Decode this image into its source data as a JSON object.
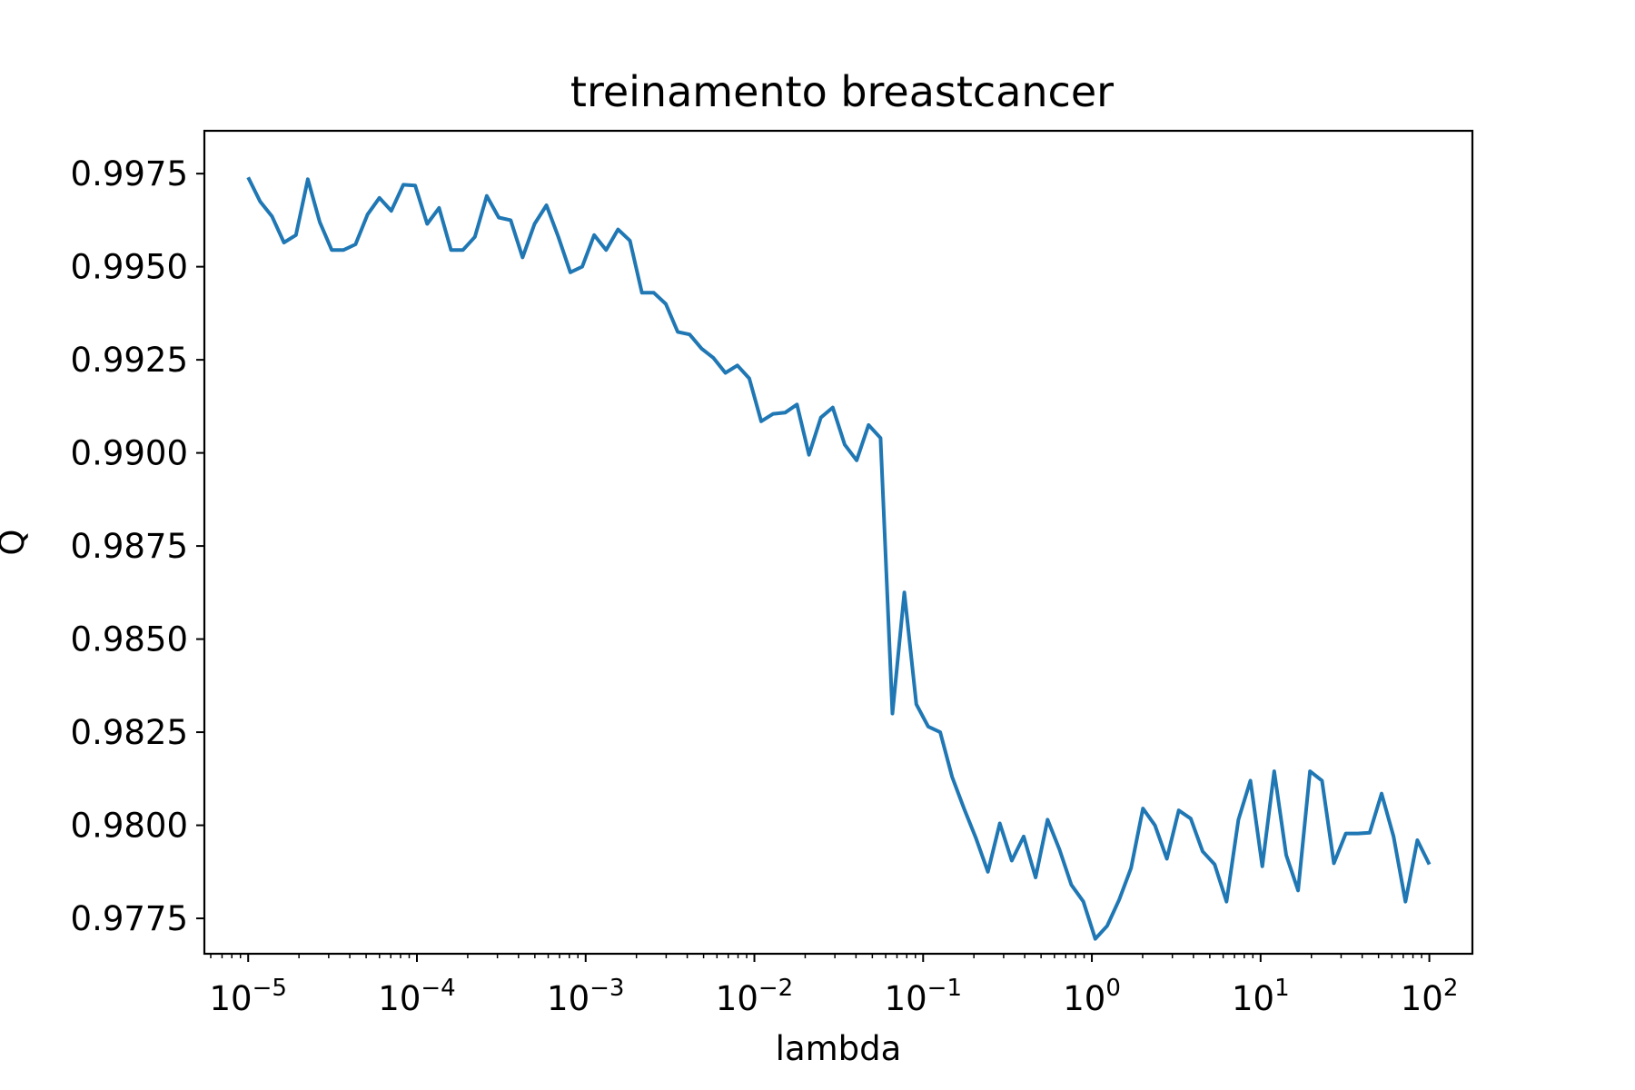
{
  "chart_data": {
    "type": "line",
    "title": "treinamento breastcancer",
    "xlabel": "lambda",
    "ylabel": "Q",
    "xscale": "log",
    "xlim": [
      5.5e-06,
      180
    ],
    "ylim": [
      0.97655,
      0.99865
    ],
    "grid": false,
    "legend": "none",
    "x_ticks": [
      {
        "value": 1e-05,
        "base": "10",
        "exp": "−5"
      },
      {
        "value": 0.0001,
        "base": "10",
        "exp": "−4"
      },
      {
        "value": 0.001,
        "base": "10",
        "exp": "−3"
      },
      {
        "value": 0.01,
        "base": "10",
        "exp": "−2"
      },
      {
        "value": 0.1,
        "base": "10",
        "exp": "−1"
      },
      {
        "value": 1,
        "base": "10",
        "exp": "0"
      },
      {
        "value": 10,
        "base": "10",
        "exp": "1"
      },
      {
        "value": 100,
        "base": "10",
        "exp": "2"
      }
    ],
    "y_ticks": [
      {
        "value": 0.9775,
        "label": "0.9775"
      },
      {
        "value": 0.98,
        "label": "0.9800"
      },
      {
        "value": 0.9825,
        "label": "0.9825"
      },
      {
        "value": 0.985,
        "label": "0.9850"
      },
      {
        "value": 0.9875,
        "label": "0.9875"
      },
      {
        "value": 0.99,
        "label": "0.9900"
      },
      {
        "value": 0.9925,
        "label": "0.9925"
      },
      {
        "value": 0.995,
        "label": "0.9950"
      },
      {
        "value": 0.9975,
        "label": "0.9975"
      }
    ],
    "series": [
      {
        "color": "#1f77b4",
        "log10_x_start": -5,
        "log10_x_end": 2,
        "y": [
          0.9974,
          0.99675,
          0.99635,
          0.99565,
          0.99585,
          0.99735,
          0.9962,
          0.99545,
          0.99545,
          0.9956,
          0.9964,
          0.99685,
          0.9965,
          0.9972,
          0.99718,
          0.99615,
          0.99658,
          0.99545,
          0.99545,
          0.9958,
          0.9969,
          0.99632,
          0.99625,
          0.99525,
          0.99615,
          0.99665,
          0.9958,
          0.99485,
          0.995,
          0.99585,
          0.99545,
          0.996,
          0.9957,
          0.9943,
          0.9943,
          0.994,
          0.99325,
          0.99318,
          0.9928,
          0.99255,
          0.99215,
          0.99235,
          0.992,
          0.99085,
          0.99105,
          0.99108,
          0.9913,
          0.98995,
          0.99095,
          0.99122,
          0.99022,
          0.9898,
          0.99075,
          0.9904,
          0.983,
          0.98625,
          0.98325,
          0.98265,
          0.9825,
          0.9813,
          0.98045,
          0.97965,
          0.97875,
          0.98005,
          0.97905,
          0.9797,
          0.9786,
          0.98015,
          0.97935,
          0.9784,
          0.97795,
          0.97695,
          0.9773,
          0.978,
          0.97885,
          0.98045,
          0.98,
          0.9791,
          0.9804,
          0.98018,
          0.9793,
          0.97895,
          0.97795,
          0.98015,
          0.9812,
          0.9789,
          0.98145,
          0.9792,
          0.97825,
          0.98145,
          0.9812,
          0.97898,
          0.97978,
          0.97978,
          0.9798,
          0.98085,
          0.9797,
          0.97795,
          0.9796,
          0.97895
        ]
      }
    ]
  }
}
